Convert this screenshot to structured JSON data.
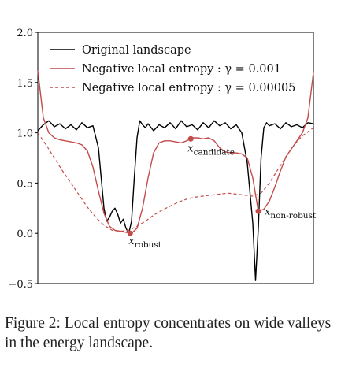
{
  "chart_data": {
    "type": "line",
    "xlim": [
      0,
      1
    ],
    "ylim": [
      -0.5,
      2.0
    ],
    "yticks": [
      "2.0",
      "1.5",
      "1.0",
      "0.5",
      "0.0",
      "−0.5"
    ],
    "ytick_values": [
      2.0,
      1.5,
      1.0,
      0.5,
      0.0,
      -0.5
    ],
    "legend_position": "top",
    "series": [
      {
        "name": "Original landscape",
        "color": "#000000",
        "style": "solid",
        "x": [
          0.0,
          0.02,
          0.04,
          0.06,
          0.08,
          0.1,
          0.12,
          0.14,
          0.16,
          0.18,
          0.2,
          0.22,
          0.23,
          0.24,
          0.25,
          0.26,
          0.27,
          0.28,
          0.29,
          0.3,
          0.31,
          0.32,
          0.33,
          0.34,
          0.35,
          0.36,
          0.37,
          0.38,
          0.39,
          0.4,
          0.42,
          0.44,
          0.46,
          0.48,
          0.5,
          0.52,
          0.54,
          0.56,
          0.58,
          0.6,
          0.62,
          0.64,
          0.66,
          0.68,
          0.7,
          0.72,
          0.74,
          0.76,
          0.78,
          0.79,
          0.8,
          0.81,
          0.82,
          0.83,
          0.84,
          0.86,
          0.88,
          0.9,
          0.92,
          0.94,
          0.96,
          0.98,
          1.0
        ],
        "y": [
          1.02,
          1.08,
          1.12,
          1.06,
          1.09,
          1.04,
          1.08,
          1.03,
          1.1,
          1.05,
          1.07,
          0.85,
          0.55,
          0.25,
          0.12,
          0.16,
          0.22,
          0.25,
          0.19,
          0.1,
          0.14,
          0.05,
          0.0,
          0.12,
          0.55,
          0.95,
          1.12,
          1.08,
          1.05,
          1.09,
          1.02,
          1.08,
          1.05,
          1.1,
          1.04,
          1.12,
          1.06,
          1.08,
          1.03,
          1.1,
          1.05,
          1.12,
          1.07,
          1.1,
          1.04,
          1.08,
          1.0,
          0.7,
          0.1,
          -0.47,
          0.05,
          0.75,
          1.05,
          1.1,
          1.07,
          1.09,
          1.04,
          1.1,
          1.06,
          1.08,
          1.05,
          1.1,
          1.09
        ]
      },
      {
        "name": "Negative local entropy :  γ = 0.001",
        "color": "#c44a4a",
        "style": "solid",
        "x": [
          0.0,
          0.02,
          0.04,
          0.06,
          0.08,
          0.1,
          0.12,
          0.14,
          0.16,
          0.18,
          0.2,
          0.22,
          0.24,
          0.26,
          0.28,
          0.3,
          0.32,
          0.34,
          0.36,
          0.38,
          0.4,
          0.42,
          0.44,
          0.46,
          0.48,
          0.5,
          0.52,
          0.54,
          0.56,
          0.58,
          0.6,
          0.62,
          0.64,
          0.66,
          0.68,
          0.7,
          0.72,
          0.74,
          0.76,
          0.78,
          0.8,
          0.82,
          0.84,
          0.86,
          0.88,
          0.9,
          0.92,
          0.94,
          0.96,
          0.98,
          1.0
        ],
        "y": [
          1.62,
          1.15,
          1.0,
          0.95,
          0.93,
          0.92,
          0.91,
          0.9,
          0.88,
          0.82,
          0.66,
          0.42,
          0.2,
          0.07,
          0.03,
          0.02,
          0.01,
          0.0,
          0.05,
          0.25,
          0.55,
          0.8,
          0.9,
          0.92,
          0.92,
          0.91,
          0.9,
          0.92,
          0.95,
          0.95,
          0.94,
          0.95,
          0.92,
          0.85,
          0.81,
          0.8,
          0.8,
          0.79,
          0.75,
          0.55,
          0.22,
          0.24,
          0.32,
          0.46,
          0.62,
          0.76,
          0.84,
          0.92,
          1.0,
          1.15,
          1.6
        ]
      },
      {
        "name": "Negative local entropy :  γ = 0.00005",
        "color": "#c44a4a",
        "style": "dashed",
        "x": [
          0.0,
          0.03,
          0.06,
          0.09,
          0.12,
          0.15,
          0.18,
          0.21,
          0.24,
          0.27,
          0.3,
          0.33,
          0.36,
          0.39,
          0.42,
          0.45,
          0.48,
          0.51,
          0.54,
          0.57,
          0.6,
          0.63,
          0.66,
          0.69,
          0.72,
          0.75,
          0.78,
          0.81,
          0.84,
          0.87,
          0.9,
          0.93,
          0.96,
          1.0
        ],
        "y": [
          1.0,
          0.88,
          0.75,
          0.62,
          0.5,
          0.38,
          0.26,
          0.16,
          0.08,
          0.03,
          0.02,
          0.03,
          0.07,
          0.12,
          0.18,
          0.23,
          0.27,
          0.31,
          0.34,
          0.36,
          0.37,
          0.38,
          0.39,
          0.4,
          0.39,
          0.38,
          0.37,
          0.4,
          0.5,
          0.63,
          0.76,
          0.88,
          0.97,
          1.05
        ]
      }
    ],
    "annotations": [
      {
        "x": 0.335,
        "y": 0.0,
        "base": "x",
        "sub": "robust"
      },
      {
        "x": 0.555,
        "y": 0.94,
        "base": "x",
        "sub": "candidate"
      },
      {
        "x": 0.8,
        "y": 0.22,
        "base": "x",
        "sub": "non-robust"
      }
    ],
    "marker_color": "#c44a4a"
  },
  "caption": {
    "label": "Figure 2:",
    "text": "Local entropy concentrates on wide valleys in the energy landscape."
  }
}
